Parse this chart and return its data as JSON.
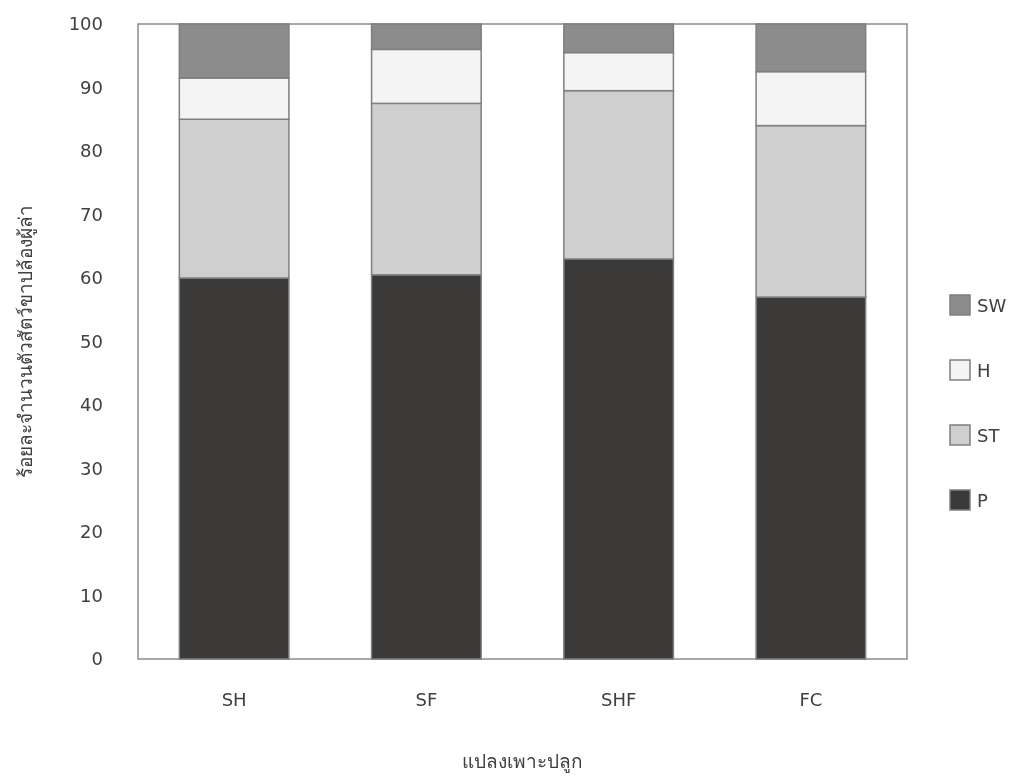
{
  "chart_data": {
    "type": "bar",
    "stacked": true,
    "xlabel": "แปลงเพาะปลูก",
    "ylabel": "ร้อยละจำนวนตัวสัตว์ขาปล้องผู้ล่า",
    "categories": [
      "SH",
      "SF",
      "SHF",
      "FC"
    ],
    "series": [
      {
        "name": "P",
        "color": "#3b3a38",
        "values": [
          60,
          60.5,
          63,
          57
        ]
      },
      {
        "name": "ST",
        "color": "#d0cfd0",
        "values": [
          25,
          27,
          26.5,
          27
        ]
      },
      {
        "name": "H",
        "color": "#f4f4f4",
        "values": [
          6.5,
          8.5,
          6,
          8.5
        ]
      },
      {
        "name": "SW",
        "color": "#8c8c8c",
        "values": [
          8.5,
          4,
          4.5,
          7.5
        ]
      }
    ],
    "ylim": [
      0,
      100
    ],
    "yticks": [
      0,
      10,
      20,
      30,
      40,
      50,
      60,
      70,
      80,
      90,
      100
    ],
    "grid": false,
    "legend": "right"
  }
}
